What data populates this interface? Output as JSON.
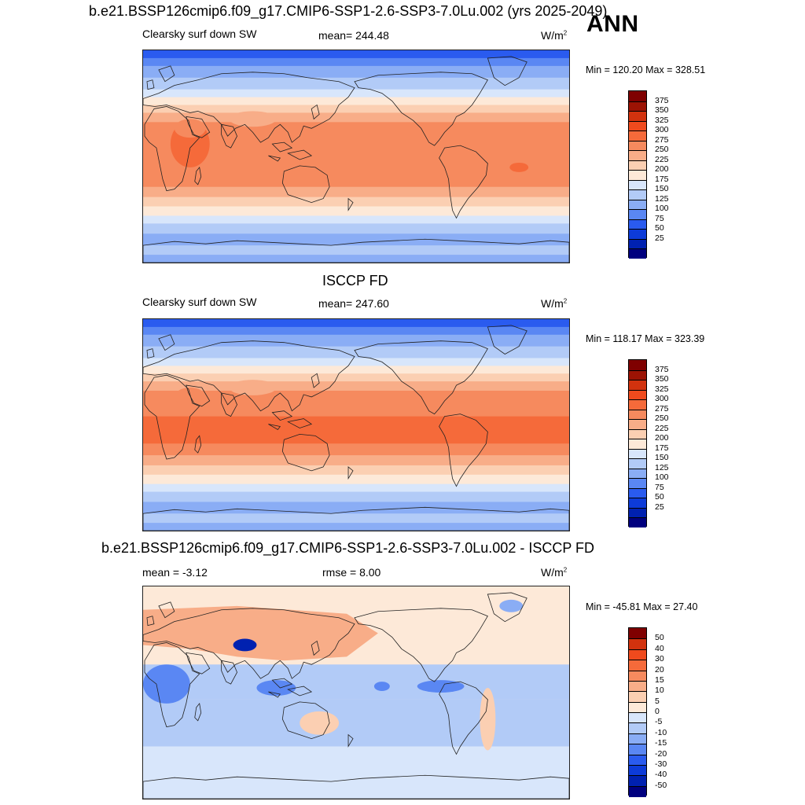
{
  "season": "ANN",
  "colors": {
    "seq": [
      "#00007f",
      "#0021b0",
      "#0d3bd8",
      "#2a5bef",
      "#5a87f3",
      "#8aadf5",
      "#b2cbf7",
      "#d8e6fb",
      "#fde9d8",
      "#fbcfb2",
      "#f8ad88",
      "#f68a5e",
      "#f56a3a",
      "#ef4a1d",
      "#d2320e",
      "#9c1304",
      "#7f0000"
    ],
    "diff": [
      "#00007f",
      "#0021b0",
      "#0d3bd8",
      "#2a5bef",
      "#5a87f3",
      "#8aadf5",
      "#b2cbf7",
      "#d8e6fb",
      "#fde9d8",
      "#fbcfb2",
      "#f8ad88",
      "#f68a5e",
      "#f56a3a",
      "#ef4a1d",
      "#d2320e",
      "#7f0000"
    ]
  },
  "panels": [
    {
      "title": "b.e21.BSSP126cmip6.f09_g17.CMIP6-SSP1-2.6-SSP3-7.0Lu.002 (yrs 2025-2049)",
      "left_label": "Clearsky surf down SW",
      "center_label": "mean= 244.48",
      "units": "W/m",
      "units_sup": "2",
      "minmax": "Min = 120.20 Max = 328.51",
      "colorbar_labels": [
        "375",
        "350",
        "325",
        "300",
        "275",
        "250",
        "225",
        "200",
        "175",
        "150",
        "125",
        "100",
        "75",
        "50",
        "25"
      ],
      "kind": "model"
    },
    {
      "title": "ISCCP FD",
      "left_label": "Clearsky surf down SW",
      "center_label": "mean= 247.60",
      "units": "W/m",
      "units_sup": "2",
      "minmax": "Min = 118.17 Max = 323.39",
      "colorbar_labels": [
        "375",
        "350",
        "325",
        "300",
        "275",
        "250",
        "225",
        "200",
        "175",
        "150",
        "125",
        "100",
        "75",
        "50",
        "25"
      ],
      "kind": "obs"
    },
    {
      "title": "b.e21.BSSP126cmip6.f09_g17.CMIP6-SSP1-2.6-SSP3-7.0Lu.002 - ISCCP FD",
      "left_label": "mean =  -3.12",
      "center_label": "rmse =   8.00",
      "units": "W/m",
      "units_sup": "2",
      "minmax": "Min = -45.81 Max =  27.40",
      "colorbar_labels": [
        "50",
        "40",
        "30",
        "20",
        "15",
        "10",
        "5",
        "0",
        "-5",
        "-10",
        "-15",
        "-20",
        "-30",
        "-40",
        "-50"
      ],
      "kind": "diff"
    }
  ]
}
